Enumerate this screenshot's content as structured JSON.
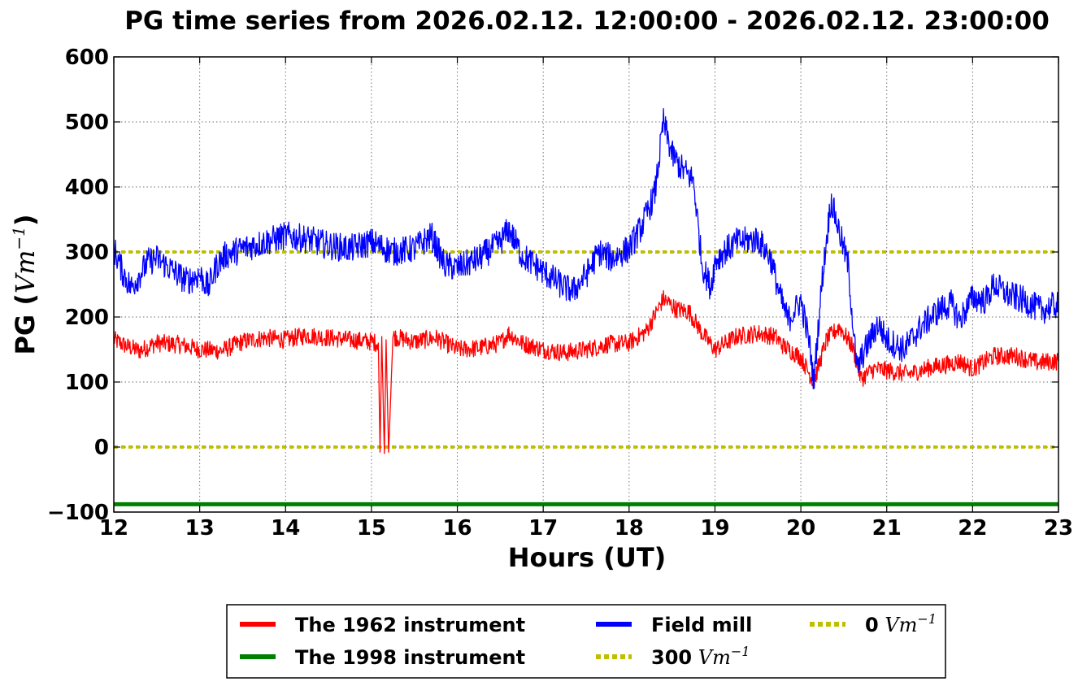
{
  "chart_data": {
    "type": "line",
    "title": "PG time series from 2026.02.12. 12:00:00 - 2026.02.12. 23:00:00",
    "xlabel": "Hours (UT)",
    "ylabel": {
      "main": "PG (",
      "unit": "Vm",
      "exp": "−1",
      "close": ")"
    },
    "xlim": [
      12,
      23
    ],
    "ylim": [
      -100,
      600
    ],
    "xticks": [
      12,
      13,
      14,
      15,
      16,
      17,
      18,
      19,
      20,
      21,
      22,
      23
    ],
    "yticks": [
      -100,
      0,
      100,
      200,
      300,
      400,
      500,
      600
    ],
    "ytick_labels": [
      "−100",
      "0",
      "100",
      "200",
      "300",
      "400",
      "500",
      "600"
    ],
    "grid": true,
    "legend_position": "below",
    "series": [
      {
        "name": "The 1962 instrument",
        "color": "#ff0000",
        "x": [
          12.0,
          12.15,
          12.3,
          12.5,
          12.75,
          13.0,
          13.25,
          13.5,
          13.75,
          14.0,
          14.25,
          14.5,
          14.75,
          15.0,
          15.08,
          15.1,
          15.12,
          15.15,
          15.17,
          15.2,
          15.25,
          15.5,
          15.75,
          16.0,
          16.25,
          16.5,
          16.6,
          16.75,
          17.0,
          17.25,
          17.5,
          17.75,
          18.0,
          18.2,
          18.4,
          18.55,
          18.7,
          18.85,
          19.0,
          19.25,
          19.5,
          19.7,
          19.8,
          20.0,
          20.15,
          20.3,
          20.45,
          20.6,
          20.7,
          20.85,
          21.0,
          21.25,
          21.5,
          21.75,
          21.85,
          22.0,
          22.25,
          22.5,
          22.75,
          23.0
        ],
        "y": [
          165,
          155,
          148,
          160,
          158,
          150,
          148,
          162,
          168,
          165,
          172,
          168,
          165,
          162,
          160,
          -8,
          170,
          -10,
          165,
          -8,
          170,
          162,
          168,
          150,
          152,
          160,
          175,
          160,
          150,
          145,
          150,
          158,
          160,
          178,
          228,
          212,
          208,
          175,
          150,
          170,
          175,
          170,
          155,
          138,
          100,
          165,
          185,
          155,
          105,
          120,
          118,
          112,
          122,
          128,
          132,
          120,
          140,
          140,
          130,
          132
        ]
      },
      {
        "name": "The 1998 instrument",
        "color": "#008000",
        "x": [
          12,
          23
        ],
        "y": [
          -88,
          -88
        ]
      },
      {
        "name": "Field mill",
        "color": "#0000ff",
        "x": [
          12.0,
          12.1,
          12.2,
          12.3,
          12.4,
          12.5,
          12.7,
          12.85,
          13.0,
          13.1,
          13.2,
          13.3,
          13.5,
          13.75,
          14.0,
          14.25,
          14.5,
          14.75,
          15.0,
          15.25,
          15.5,
          15.7,
          15.85,
          16.0,
          16.25,
          16.5,
          16.6,
          16.75,
          17.0,
          17.25,
          17.35,
          17.5,
          17.65,
          17.8,
          18.0,
          18.15,
          18.3,
          18.4,
          18.5,
          18.6,
          18.75,
          18.85,
          18.95,
          19.0,
          19.1,
          19.25,
          19.5,
          19.65,
          19.75,
          19.85,
          20.0,
          20.1,
          20.15,
          20.25,
          20.35,
          20.45,
          20.55,
          20.6,
          20.65,
          20.75,
          20.9,
          21.0,
          21.2,
          21.4,
          21.6,
          21.75,
          21.85,
          22.0,
          22.15,
          22.25,
          22.4,
          22.6,
          22.8,
          23.0
        ],
        "y": [
          305,
          270,
          245,
          265,
          285,
          290,
          270,
          255,
          265,
          245,
          280,
          295,
          305,
          315,
          325,
          320,
          310,
          305,
          315,
          300,
          305,
          325,
          280,
          275,
          290,
          315,
          335,
          295,
          270,
          245,
          240,
          265,
          300,
          290,
          305,
          340,
          390,
          500,
          450,
          430,
          410,
          280,
          245,
          285,
          300,
          315,
          320,
          290,
          235,
          195,
          225,
          160,
          100,
          260,
          380,
          330,
          280,
          200,
          120,
          150,
          190,
          165,
          150,
          185,
          210,
          220,
          195,
          230,
          225,
          250,
          235,
          225,
          210,
          220
        ]
      }
    ],
    "reference_lines": [
      {
        "name": "300",
        "y": 300,
        "color": "#bfbf00"
      },
      {
        "name": "0",
        "y": 0,
        "color": "#bfbf00"
      }
    ],
    "legend": {
      "entries": [
        {
          "label": "The 1962 instrument",
          "unit": "",
          "exp": "",
          "color": "#ff0000",
          "style": "solid"
        },
        {
          "label": "The 1998 instrument",
          "unit": "",
          "exp": "",
          "color": "#008000",
          "style": "solid"
        },
        {
          "label": "Field mill",
          "unit": "",
          "exp": "",
          "color": "#0000ff",
          "style": "solid"
        },
        {
          "label": "300",
          "unit": "Vm",
          "exp": "−1",
          "color": "#bfbf00",
          "style": "dotted"
        },
        {
          "label": "0",
          "unit": "Vm",
          "exp": "−1",
          "color": "#bfbf00",
          "style": "dotted"
        }
      ]
    }
  }
}
